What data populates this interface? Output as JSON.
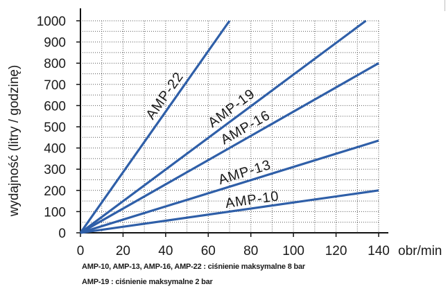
{
  "chart_data": {
    "type": "line",
    "xlabel": "obr/min",
    "ylabel": "wydajność (litry / godzinę)",
    "xlim": [
      0,
      140
    ],
    "ylim": [
      0,
      1000
    ],
    "x_ticks": [
      "0",
      "20",
      "40",
      "60",
      "80",
      "100",
      "120",
      "140"
    ],
    "y_ticks": [
      "0",
      "100",
      "200",
      "300",
      "400",
      "500",
      "600",
      "700",
      "800",
      "900",
      "1000"
    ],
    "grid": true,
    "series": [
      {
        "name": "AMP-22",
        "x": [
          0,
          70
        ],
        "values": [
          0,
          1000
        ]
      },
      {
        "name": "AMP-19",
        "x": [
          0,
          134
        ],
        "values": [
          0,
          1000
        ]
      },
      {
        "name": "AMP-16",
        "x": [
          0,
          140
        ],
        "values": [
          0,
          800
        ]
      },
      {
        "name": "AMP-13",
        "x": [
          0,
          140
        ],
        "values": [
          0,
          435
        ]
      },
      {
        "name": "AMP-10",
        "x": [
          0,
          140
        ],
        "values": [
          0,
          200
        ]
      }
    ],
    "line_color": "#2f5fa8",
    "notes": [
      "AMP-10, AMP-13, AMP-16, AMP-22 : ciśnienie maksymalne 8 bar",
      "AMP-19 : ciśnienie maksymalne 2 bar"
    ]
  }
}
